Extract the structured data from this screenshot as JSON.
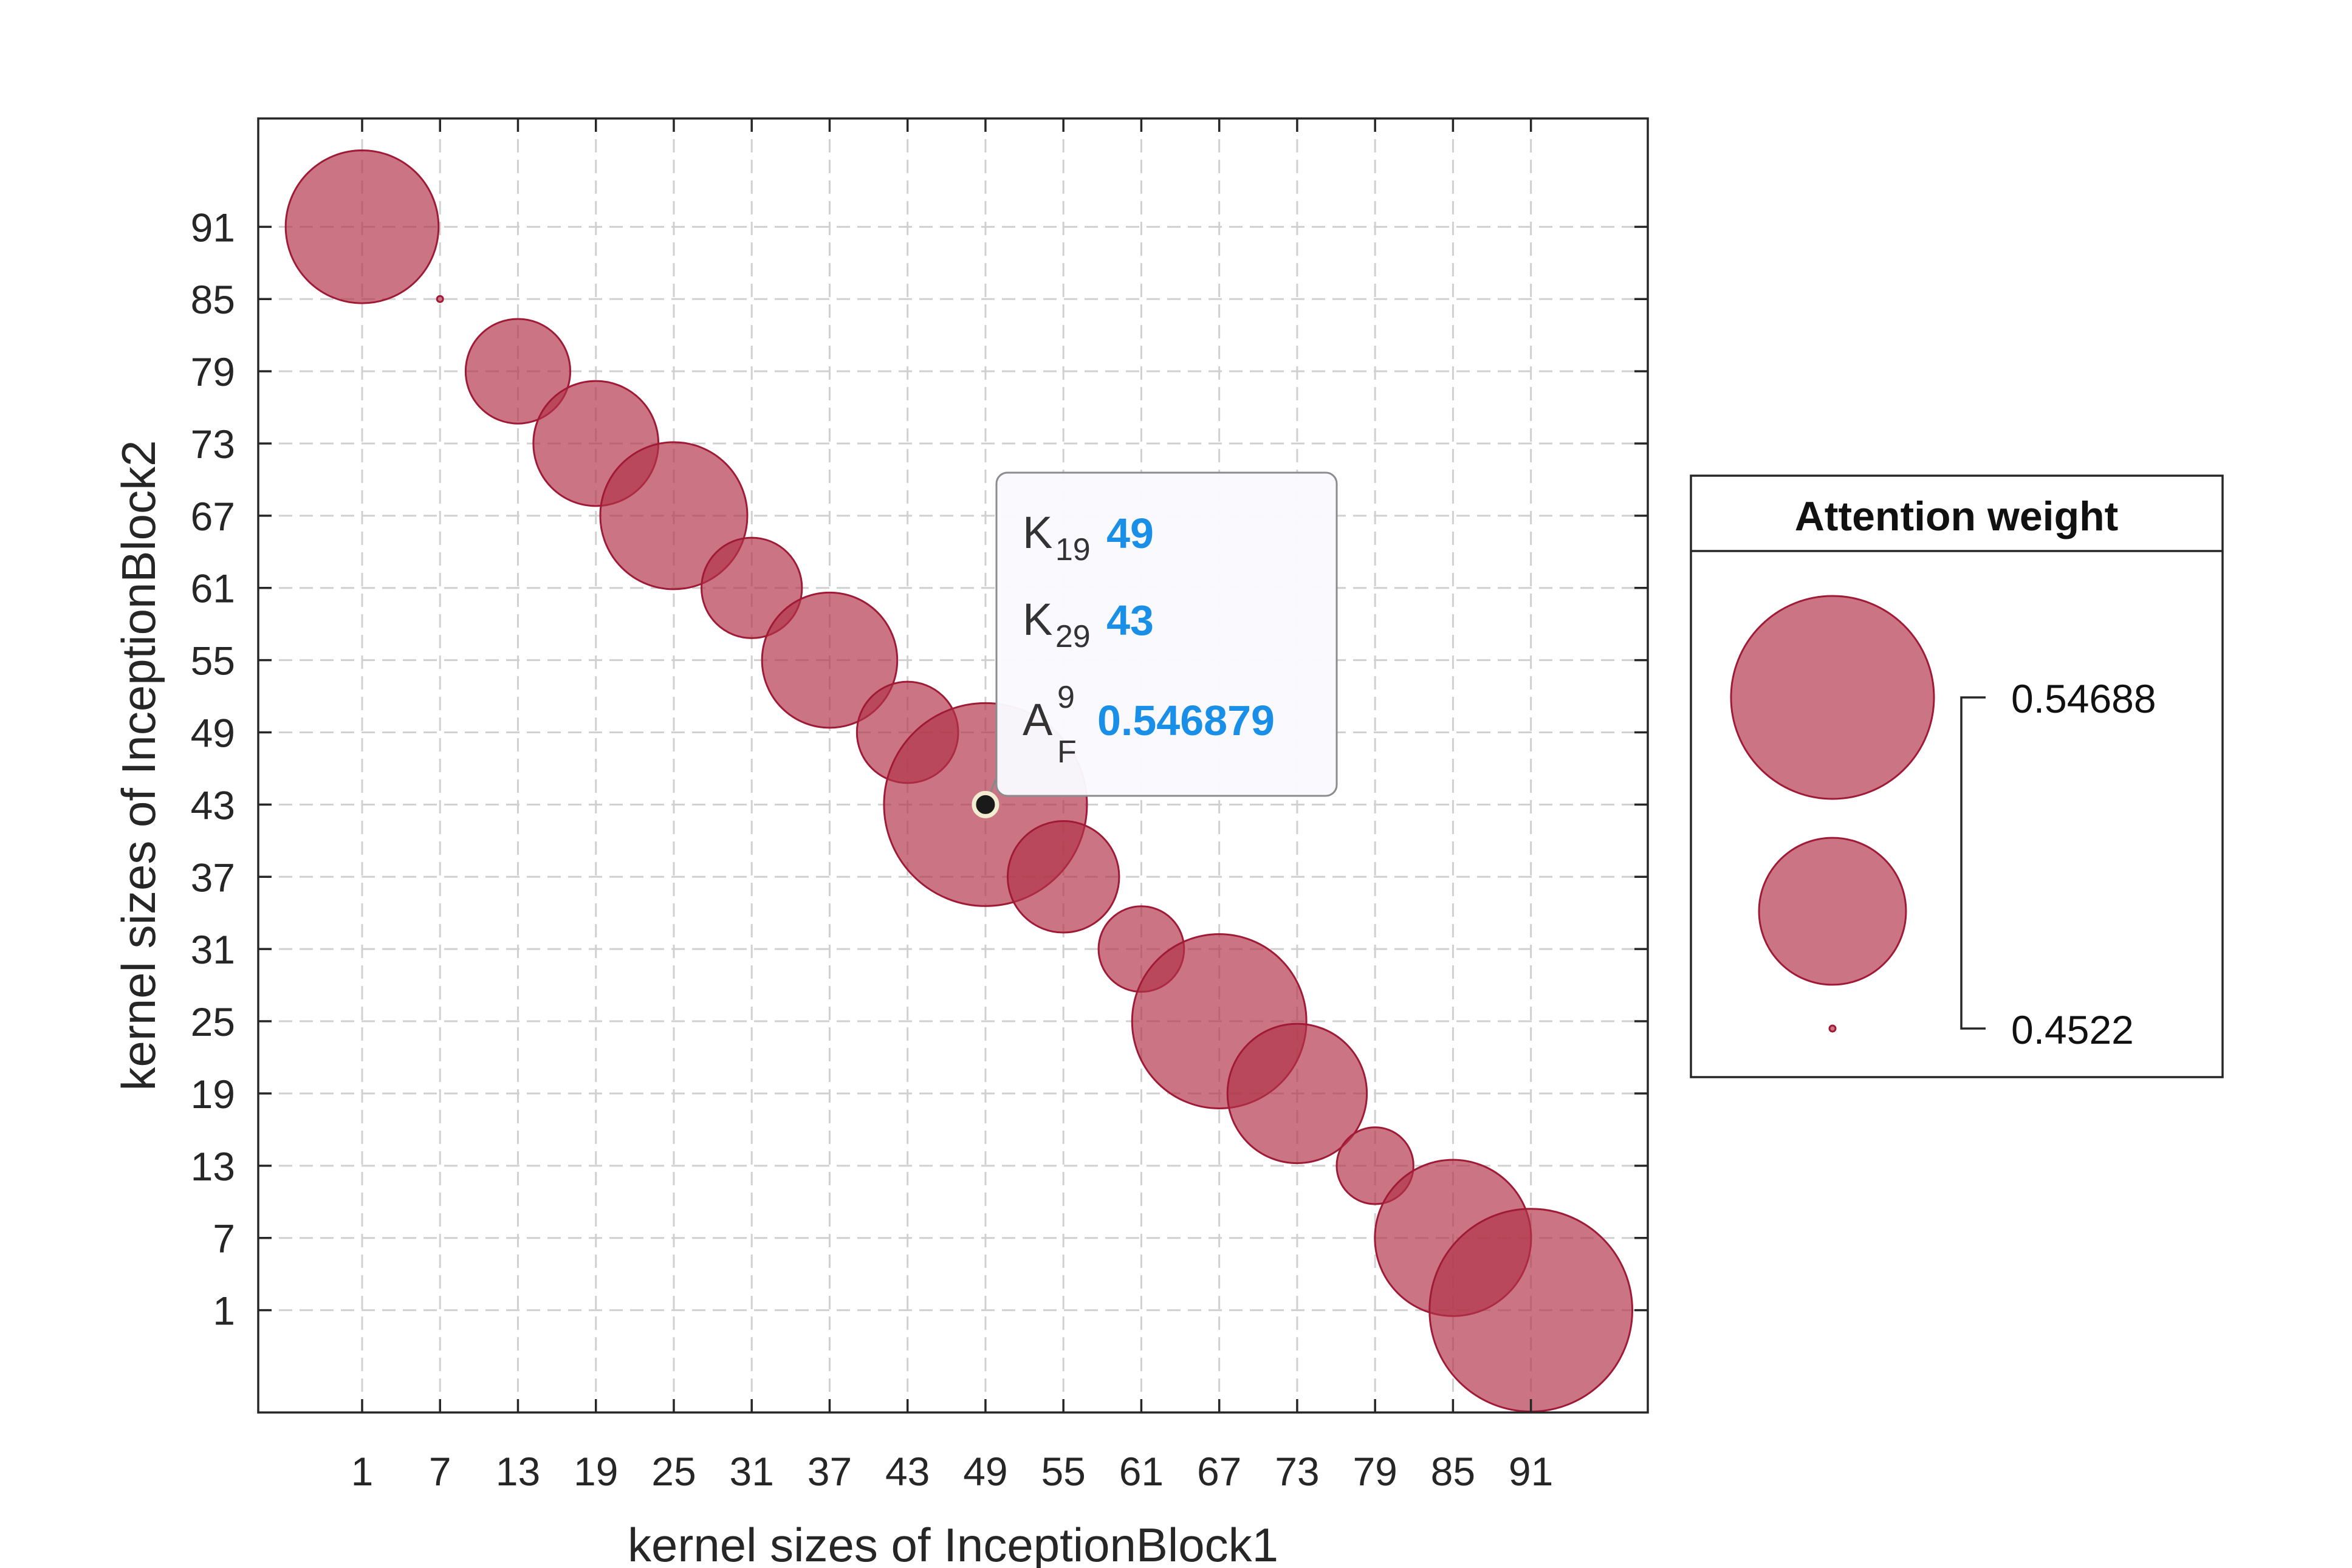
{
  "chart_data": {
    "type": "scatter",
    "xlabel": "kernel sizes of InceptionBlock1",
    "ylabel": "kernel sizes of InceptionBlock2",
    "x_ticks": [
      1,
      7,
      13,
      19,
      25,
      31,
      37,
      43,
      49,
      55,
      61,
      67,
      73,
      79,
      85,
      91
    ],
    "y_ticks": [
      1,
      7,
      13,
      19,
      25,
      31,
      37,
      43,
      49,
      55,
      61,
      67,
      73,
      79,
      85,
      91
    ],
    "xlim": [
      -7,
      100
    ],
    "ylim": [
      -7.5,
      100
    ],
    "grid": true,
    "points": [
      {
        "x": 1,
        "y": 91,
        "weight": 0.5228
      },
      {
        "x": 7,
        "y": 85,
        "weight": 0.4522
      },
      {
        "x": 13,
        "y": 79,
        "weight": 0.4996
      },
      {
        "x": 19,
        "y": 73,
        "weight": 0.5094
      },
      {
        "x": 25,
        "y": 67,
        "weight": 0.52
      },
      {
        "x": 31,
        "y": 61,
        "weight": 0.4976
      },
      {
        "x": 37,
        "y": 55,
        "weight": 0.5143
      },
      {
        "x": 43,
        "y": 49,
        "weight": 0.498
      },
      {
        "x": 49,
        "y": 43,
        "weight": 0.546879
      },
      {
        "x": 55,
        "y": 37,
        "weight": 0.5029
      },
      {
        "x": 61,
        "y": 31,
        "weight": 0.4904
      },
      {
        "x": 67,
        "y": 25,
        "weight": 0.5331
      },
      {
        "x": 73,
        "y": 19,
        "weight": 0.5163
      },
      {
        "x": 79,
        "y": 13,
        "weight": 0.4862
      },
      {
        "x": 85,
        "y": 7,
        "weight": 0.5244
      },
      {
        "x": 91,
        "y": 1,
        "weight": 0.5468
      }
    ],
    "datatip": {
      "x": 49,
      "y": 43,
      "row1_label": "K",
      "row1_sub": "19",
      "row1_value": "49",
      "row2_label": "K",
      "row2_sub": "29",
      "row2_value": "43",
      "row3_label": "A",
      "row3_sub": "F",
      "row3_sup": "9",
      "row3_value": "0.546879"
    },
    "legend": {
      "title": "Attention weight",
      "position": "right",
      "max_label": "0.54688",
      "min_label": "0.4522",
      "max_value": 0.54688,
      "mid_value": 0.4995,
      "min_value": 0.4522
    },
    "colors": {
      "bubble_fill": "#b2334a",
      "bubble_edge": "#a01a35",
      "tip_value": "#1a8fe8"
    }
  }
}
